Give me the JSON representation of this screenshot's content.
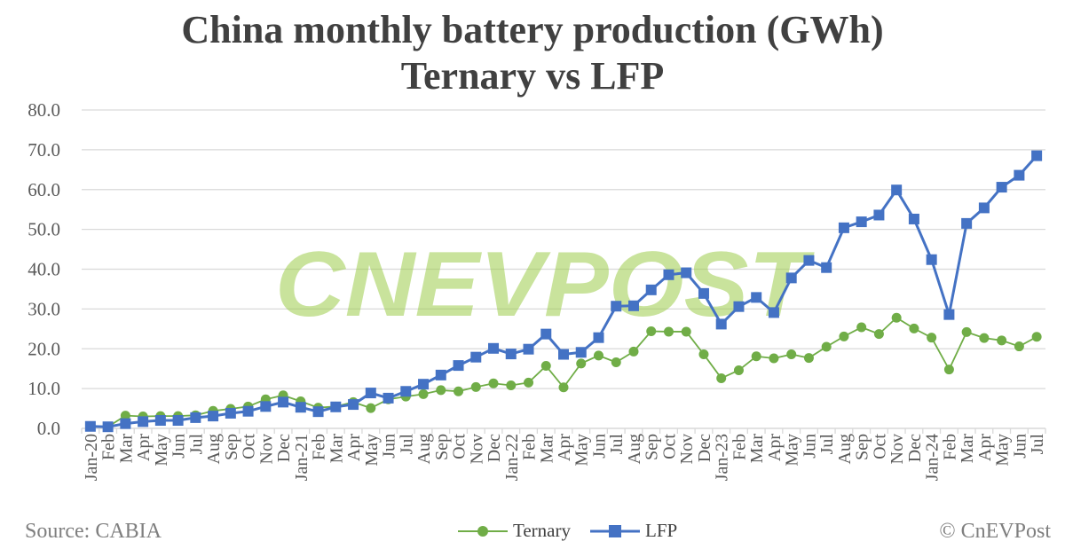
{
  "chart_data": {
    "type": "line",
    "title": "China monthly battery production (GWh)",
    "subtitle": "Ternary vs LFP",
    "ylim": [
      0,
      80
    ],
    "yticks": [
      "0.0",
      "10.0",
      "20.0",
      "30.0",
      "40.0",
      "50.0",
      "60.0",
      "70.0",
      "80.0"
    ],
    "grid": true,
    "legend": "bottom",
    "categories": [
      "Jan-20",
      "Feb",
      "Mar",
      "Apr",
      "May",
      "Jun",
      "Jul",
      "Aug",
      "Sep",
      "Oct",
      "Nov",
      "Dec",
      "Jan-21",
      "Feb",
      "Mar",
      "Apr",
      "May",
      "Jun",
      "Jul",
      "Aug",
      "Sep",
      "Oct",
      "Nov",
      "Dec",
      "Jan-22",
      "Feb",
      "Mar",
      "Apr",
      "May",
      "Jun",
      "Jul",
      "Aug",
      "Sep",
      "Oct",
      "Nov",
      "Dec",
      "Jan-23",
      "Feb",
      "Mar",
      "Apr",
      "May",
      "Jun",
      "Jul",
      "Aug",
      "Sep",
      "Oct",
      "Nov",
      "Dec",
      "Jan-24",
      "Feb",
      "Mar",
      "Apr",
      "May",
      "Jun",
      "Jul"
    ],
    "series": [
      {
        "name": "Ternary",
        "color": "#70ad47",
        "marker": "circle",
        "values": [
          0.5,
          0.4,
          3.2,
          3.0,
          3.1,
          3.1,
          3.3,
          4.4,
          4.9,
          5.5,
          7.3,
          8.3,
          6.8,
          5.2,
          5.5,
          6.6,
          5.1,
          7.3,
          8.0,
          8.6,
          9.6,
          9.3,
          10.4,
          11.3,
          10.8,
          11.5,
          15.7,
          10.3,
          16.3,
          18.3,
          16.6,
          19.3,
          24.4,
          24.3,
          24.3,
          18.6,
          12.6,
          14.6,
          18.1,
          17.6,
          18.6,
          17.7,
          20.5,
          23.1,
          25.4,
          23.7,
          27.8,
          25.1,
          22.8,
          14.8,
          24.2,
          22.7,
          22.1,
          20.6,
          23.0
        ]
      },
      {
        "name": "LFP",
        "color": "#4472c4",
        "marker": "square",
        "values": [
          0.5,
          0.4,
          1.2,
          1.7,
          2.0,
          2.0,
          2.7,
          3.1,
          3.8,
          4.3,
          5.5,
          6.6,
          5.3,
          4.2,
          5.4,
          6.0,
          8.9,
          7.6,
          9.3,
          11.1,
          13.4,
          15.8,
          17.9,
          20.1,
          18.7,
          19.9,
          23.7,
          18.6,
          19.1,
          22.8,
          30.7,
          30.8,
          34.8,
          38.6,
          39.1,
          33.9,
          26.2,
          30.6,
          32.9,
          29.1,
          37.8,
          42.2,
          40.4,
          50.4,
          51.9,
          53.6,
          59.9,
          52.6,
          42.4,
          28.6,
          51.5,
          55.4,
          60.6,
          63.6,
          68.5
        ]
      }
    ]
  },
  "watermark": "CNEVPOST",
  "source": "Source: CABIA",
  "copyright": "© CnEVPost"
}
